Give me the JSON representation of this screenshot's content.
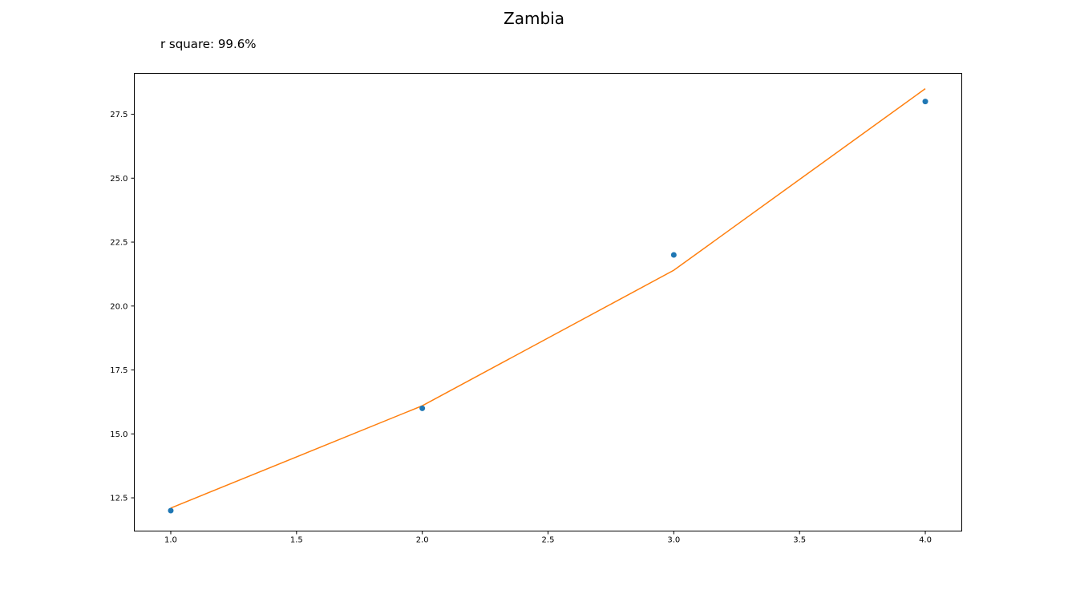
{
  "chart_data": {
    "type": "scatter",
    "title": "Zambia",
    "annotation": "r square: 99.6%",
    "xlabel": "",
    "ylabel": "",
    "xlim": [
      0.855,
      4.145
    ],
    "ylim": [
      11.2,
      29.1
    ],
    "xticks": [
      "1.0",
      "1.5",
      "2.0",
      "2.5",
      "3.0",
      "3.5",
      "4.0"
    ],
    "yticks": [
      "12.5",
      "15.0",
      "17.5",
      "20.0",
      "22.5",
      "25.0",
      "27.5"
    ],
    "grid": false,
    "series": [
      {
        "kind": "points",
        "color": "#1f77b4",
        "x": [
          1,
          2,
          3,
          4
        ],
        "y": [
          12,
          16,
          22,
          28
        ]
      },
      {
        "kind": "fit-line",
        "color": "#ff7f0e",
        "x": [
          1,
          2,
          3,
          4
        ],
        "y": [
          12.1,
          16.1,
          21.4,
          28.5
        ]
      }
    ]
  }
}
